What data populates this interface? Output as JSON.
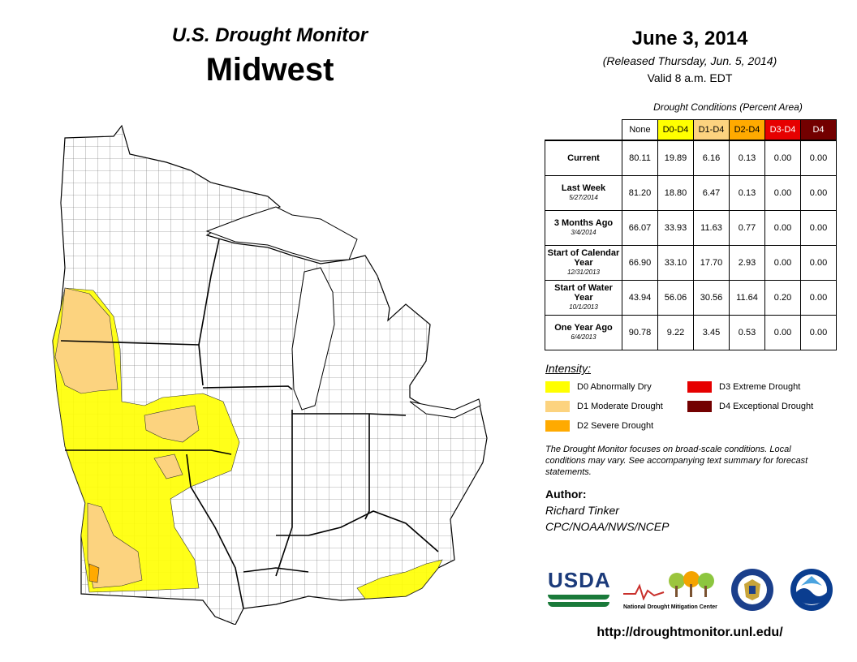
{
  "header": {
    "monitor_title": "U.S. Drought Monitor",
    "region": "Midwest",
    "date": "June 3, 2014",
    "released": "(Released Thursday, Jun. 5, 2014)",
    "valid": "Valid  8 a.m. EDT"
  },
  "conditions_table": {
    "caption": "Drought Conditions (Percent Area)",
    "columns": [
      {
        "label": "None",
        "color": "#ffffff",
        "text_color": "#000000"
      },
      {
        "label": "D0-D4",
        "color": "#ffff00",
        "text_color": "#000000"
      },
      {
        "label": "D1-D4",
        "color": "#fcd37f",
        "text_color": "#000000"
      },
      {
        "label": "D2-D4",
        "color": "#ffaa00",
        "text_color": "#000000"
      },
      {
        "label": "D3-D4",
        "color": "#e60000",
        "text_color": "#ffffff"
      },
      {
        "label": "D4",
        "color": "#730000",
        "text_color": "#ffffff"
      }
    ],
    "rows": [
      {
        "label": "Current",
        "sub": "",
        "values": [
          "80.11",
          "19.89",
          "6.16",
          "0.13",
          "0.00",
          "0.00"
        ]
      },
      {
        "label": "Last Week",
        "sub": "5/27/2014",
        "values": [
          "81.20",
          "18.80",
          "6.47",
          "0.13",
          "0.00",
          "0.00"
        ]
      },
      {
        "label": "3 Months Ago",
        "sub": "3/4/2014",
        "values": [
          "66.07",
          "33.93",
          "11.63",
          "0.77",
          "0.00",
          "0.00"
        ]
      },
      {
        "label": "Start of Calendar Year",
        "sub": "12/31/2013",
        "values": [
          "66.90",
          "33.10",
          "17.70",
          "2.93",
          "0.00",
          "0.00"
        ]
      },
      {
        "label": "Start of Water Year",
        "sub": "10/1/2013",
        "values": [
          "43.94",
          "56.06",
          "30.56",
          "11.64",
          "0.20",
          "0.00"
        ]
      },
      {
        "label": "One Year Ago",
        "sub": "6/4/2013",
        "values": [
          "90.78",
          "9.22",
          "3.45",
          "0.53",
          "0.00",
          "0.00"
        ]
      }
    ]
  },
  "legend": {
    "title": "Intensity:",
    "items": [
      {
        "label": "D0 Abnormally Dry",
        "color": "#ffff00"
      },
      {
        "label": "D1 Moderate Drought",
        "color": "#fcd37f"
      },
      {
        "label": "D2 Severe Drought",
        "color": "#ffaa00"
      },
      {
        "label": "D3 Extreme Drought",
        "color": "#e60000"
      },
      {
        "label": "D4 Exceptional Drought",
        "color": "#730000"
      }
    ]
  },
  "note": "The Drought Monitor focuses on broad-scale conditions. Local conditions may vary. See accompanying text summary for forecast statements.",
  "author": {
    "heading": "Author:",
    "name": "Richard Tinker",
    "org": "CPC/NOAA/NWS/NCEP"
  },
  "logos": {
    "usda": "USDA",
    "ndmc_line1": "National",
    "ndmc_line2": "Drought Mitigation Center"
  },
  "url": "http://droughtmonitor.unl.edu/",
  "map": {
    "colors": {
      "state_border": "#000000",
      "county_line": "#555555",
      "lake": "#ffffff"
    }
  }
}
